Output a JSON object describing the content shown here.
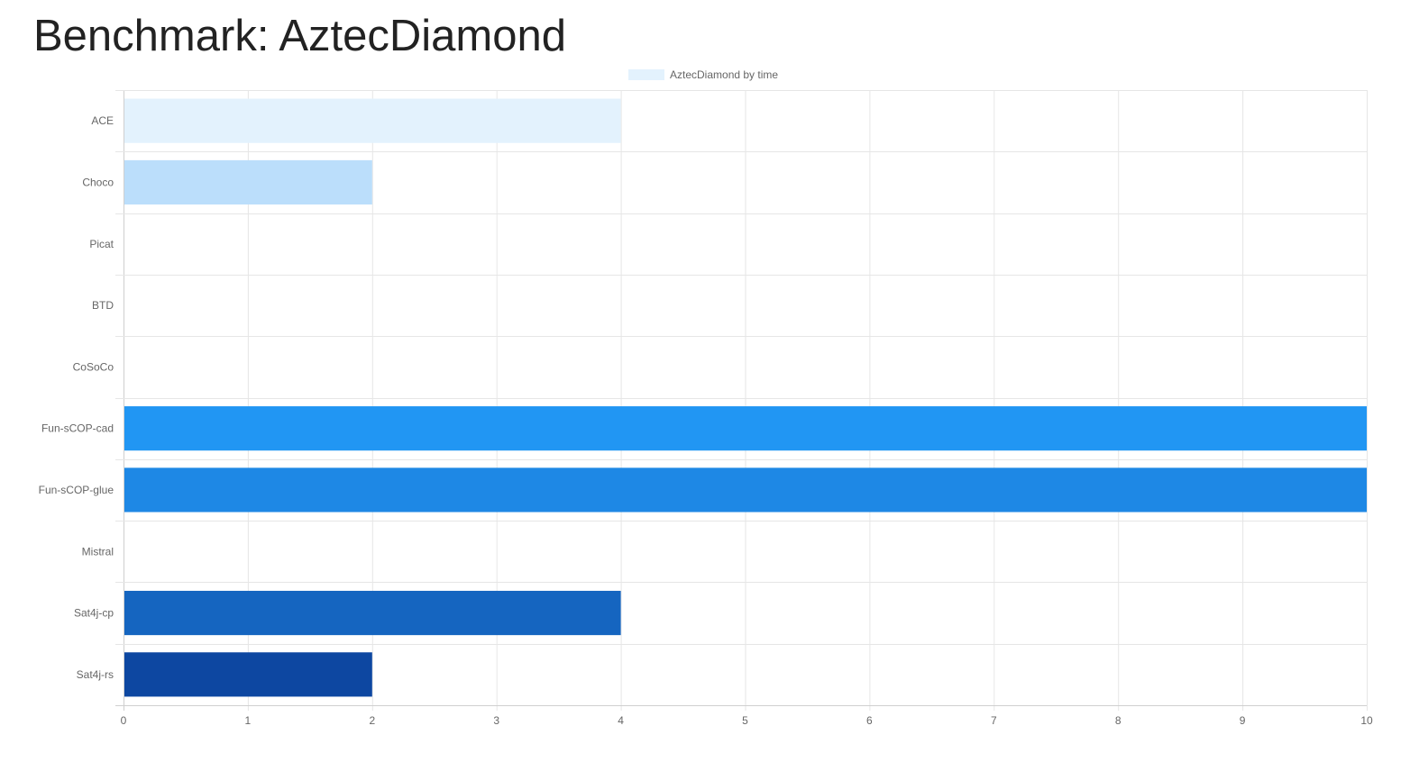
{
  "page": {
    "title": "Benchmark: AztecDiamond"
  },
  "chart_data": {
    "type": "bar",
    "orientation": "horizontal",
    "title": "",
    "xlabel": "",
    "ylabel": "",
    "legend": {
      "placement": "top-center",
      "entries": [
        {
          "label": "AztecDiamond by time",
          "color": "#e3f2fd"
        }
      ]
    },
    "grid": true,
    "xlim": [
      0,
      10
    ],
    "x_ticks": [
      "0",
      "1",
      "2",
      "3",
      "4",
      "5",
      "6",
      "7",
      "8",
      "9",
      "10"
    ],
    "categories": [
      "ACE",
      "Choco",
      "Picat",
      "BTD",
      "CoSoCo",
      "Fun-sCOP-cad",
      "Fun-sCOP-glue",
      "Mistral",
      "Sat4j-cp",
      "Sat4j-rs"
    ],
    "series": [
      {
        "name": "AztecDiamond by time",
        "values": [
          4,
          2,
          0,
          0,
          0,
          10,
          10,
          0,
          4,
          2
        ],
        "colors": [
          "#e3f2fd",
          "#bbdefb",
          "#90caf9",
          "#64b5f6",
          "#42a5f5",
          "#2196f3",
          "#1e88e5",
          "#1976d2",
          "#1565c0",
          "#0d47a1"
        ]
      }
    ]
  }
}
